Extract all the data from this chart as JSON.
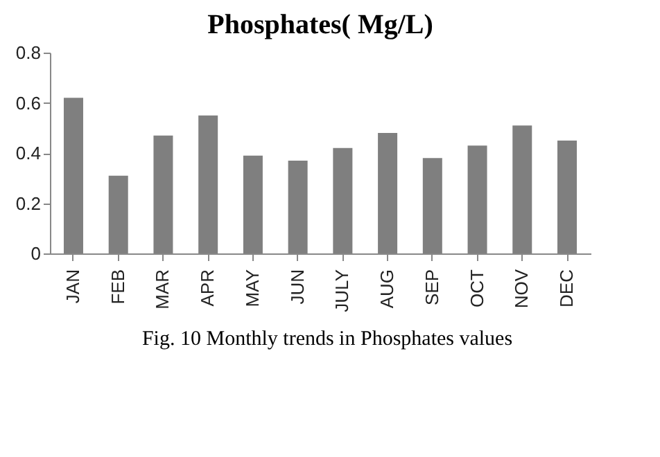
{
  "chart_data": {
    "type": "bar",
    "title": "Phosphates( Mg/L)",
    "categories": [
      "JAN",
      "FEB",
      "MAR",
      "APR",
      "MAY",
      "JUN",
      "JULY",
      "AUG",
      "SEP",
      "OCT",
      "NOV",
      "DEC"
    ],
    "values": [
      0.62,
      0.31,
      0.47,
      0.55,
      0.39,
      0.37,
      0.42,
      0.48,
      0.38,
      0.43,
      0.51,
      0.45
    ],
    "color": "#7f7f7f",
    "ylim": [
      0,
      0.8
    ],
    "yticks": [
      0,
      0.2,
      0.4,
      0.6,
      0.8
    ],
    "grid": false,
    "annotations": [
      "Fig. 10 Monthly trends in Phosphates values"
    ]
  }
}
